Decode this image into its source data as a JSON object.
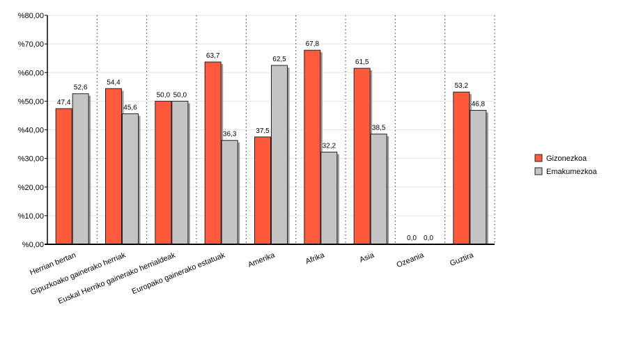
{
  "chart_data": {
    "type": "bar",
    "categories": [
      "Herrian bertan",
      "Gipuzkoako gainerako herriak",
      "Euskal Herriko gainerako herrialdeak",
      "Europako gainerako estatuak",
      "Amerika",
      "Afrika",
      "Asia",
      "Ozeania",
      "Guztira"
    ],
    "series": [
      {
        "name": "Gizonezkoa",
        "color": "#ff5a3c",
        "values": [
          47.4,
          54.4,
          50.0,
          63.7,
          37.5,
          67.8,
          61.5,
          0.0,
          53.2
        ],
        "labels": [
          "47,4",
          "54,4",
          "50,0",
          "63,7",
          "37,5",
          "67,8",
          "61,5",
          "0,0",
          "53,2"
        ]
      },
      {
        "name": "Emakumezkoa",
        "color": "#c4c4c4",
        "values": [
          52.6,
          45.6,
          50.0,
          36.3,
          62.5,
          32.2,
          38.5,
          0.0,
          46.8
        ],
        "labels": [
          "52,6",
          "45,6",
          "50,0",
          "36,3",
          "62,5",
          "32,2",
          "38,5",
          "0,0",
          "46,8"
        ]
      }
    ],
    "ylim": [
      0,
      80
    ],
    "yticks": [
      0,
      10,
      20,
      30,
      40,
      50,
      60,
      70,
      80
    ],
    "ytick_labels": [
      "%0,00",
      "%10,00",
      "%20,00",
      "%30,00",
      "%40,00",
      "%50,00",
      "%60,00",
      "%70,00",
      "%80,00"
    ],
    "grid": true,
    "legend": "right"
  }
}
